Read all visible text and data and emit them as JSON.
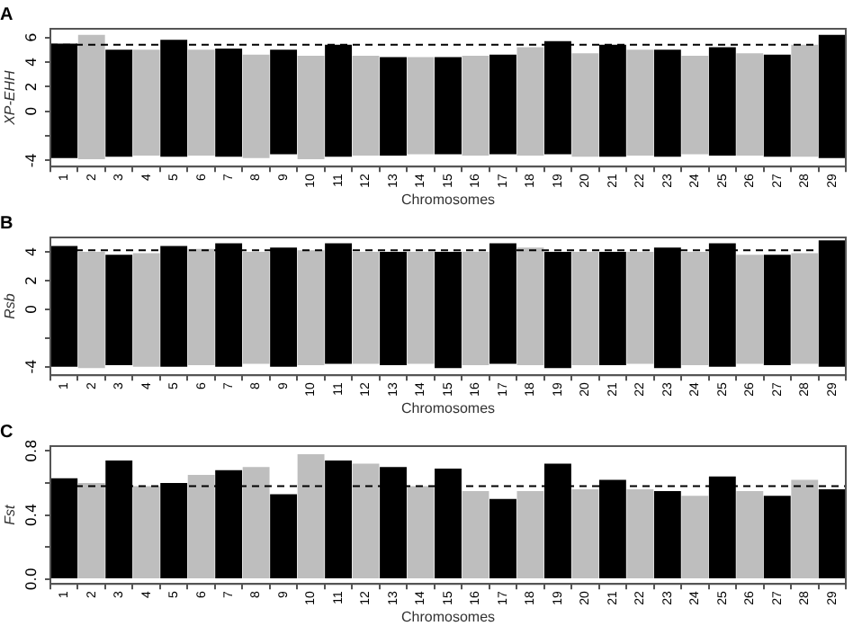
{
  "chart_data": [
    {
      "type": "bar",
      "title": "A",
      "xlabel": "Chromosomes",
      "ylabel": "XP-EHH",
      "categories": [
        "1",
        "2",
        "3",
        "4",
        "5",
        "6",
        "7",
        "8",
        "9",
        "10",
        "11",
        "12",
        "13",
        "14",
        "15",
        "16",
        "17",
        "18",
        "19",
        "20",
        "21",
        "22",
        "23",
        "24",
        "25",
        "26",
        "27",
        "28",
        "29"
      ],
      "base": [
        -3.8,
        -3.9,
        -3.7,
        -3.6,
        -3.7,
        -3.6,
        -3.7,
        -3.8,
        -3.5,
        -3.9,
        -3.7,
        -3.6,
        -3.6,
        -3.5,
        -3.5,
        -3.6,
        -3.5,
        -3.6,
        -3.5,
        -3.7,
        -3.7,
        -3.6,
        -3.7,
        -3.5,
        -3.6,
        -3.6,
        -3.7,
        -3.7,
        -3.8
      ],
      "values": [
        9.3,
        10.1,
        8.7,
        8.6,
        9.5,
        8.6,
        8.8,
        8.4,
        8.5,
        8.4,
        9.1,
        8.1,
        8.0,
        7.9,
        7.9,
        8.1,
        8.1,
        8.8,
        9.2,
        8.4,
        9.1,
        8.6,
        8.7,
        8.0,
        8.8,
        8.3,
        8.3,
        9.1,
        10.0
      ],
      "colors": [
        "#000000",
        "#bebebe",
        "#000000",
        "#bebebe",
        "#000000",
        "#bebebe",
        "#000000",
        "#bebebe",
        "#000000",
        "#bebebe",
        "#000000",
        "#bebebe",
        "#000000",
        "#bebebe",
        "#000000",
        "#bebebe",
        "#000000",
        "#bebebe",
        "#000000",
        "#bebebe",
        "#000000",
        "#bebebe",
        "#000000",
        "#bebebe",
        "#000000",
        "#bebebe",
        "#000000",
        "#bebebe",
        "#000000"
      ],
      "ylim": [
        -4.5,
        6.7
      ],
      "yticks": [
        -4,
        {
          "value": -2,
          "label": null
        },
        0,
        2,
        4,
        6
      ],
      "ref_lines": [
        {
          "axis": "y",
          "value": 5.4,
          "line_style": "dashed",
          "color": "#000000"
        }
      ],
      "grid": false,
      "legend": false
    },
    {
      "type": "bar",
      "title": "B",
      "xlabel": "Chromosomes",
      "ylabel": "Rsb",
      "categories": [
        "1",
        "2",
        "3",
        "4",
        "5",
        "6",
        "7",
        "8",
        "9",
        "10",
        "11",
        "12",
        "13",
        "14",
        "15",
        "16",
        "17",
        "18",
        "19",
        "20",
        "21",
        "22",
        "23",
        "24",
        "25",
        "26",
        "27",
        "28",
        "29"
      ],
      "base": [
        -4.0,
        -4.1,
        -3.9,
        -4.0,
        -4.0,
        -3.9,
        -4.0,
        -3.8,
        -4.0,
        -3.9,
        -3.8,
        -3.8,
        -3.9,
        -3.8,
        -4.1,
        -3.9,
        -3.8,
        -3.9,
        -4.1,
        -3.9,
        -3.9,
        -3.8,
        -4.1,
        -3.9,
        -4.0,
        -3.8,
        -3.9,
        -3.8,
        -4.0
      ],
      "values": [
        8.4,
        8.1,
        7.7,
        7.9,
        8.4,
        8.1,
        8.6,
        7.8,
        8.3,
        8.0,
        8.4,
        7.8,
        7.9,
        7.8,
        8.1,
        7.9,
        8.4,
        8.2,
        8.1,
        7.9,
        7.9,
        7.8,
        8.4,
        7.9,
        8.6,
        7.6,
        7.7,
        7.7,
        8.8
      ],
      "colors": [
        "#000000",
        "#bebebe",
        "#000000",
        "#bebebe",
        "#000000",
        "#bebebe",
        "#000000",
        "#bebebe",
        "#000000",
        "#bebebe",
        "#000000",
        "#bebebe",
        "#000000",
        "#bebebe",
        "#000000",
        "#bebebe",
        "#000000",
        "#bebebe",
        "#000000",
        "#bebebe",
        "#000000",
        "#bebebe",
        "#000000",
        "#bebebe",
        "#000000",
        "#bebebe",
        "#000000",
        "#bebebe",
        "#000000"
      ],
      "ylim": [
        -4.6,
        5.0
      ],
      "yticks": [
        -4,
        {
          "value": -2,
          "label": null
        },
        0,
        2,
        4
      ],
      "ref_lines": [
        {
          "axis": "y",
          "value": 4.1,
          "line_style": "dashed",
          "color": "#000000"
        }
      ],
      "grid": false,
      "legend": false
    },
    {
      "type": "bar",
      "title": "C",
      "xlabel": "Chromosomes",
      "ylabel": "Fst",
      "categories": [
        "1",
        "2",
        "3",
        "4",
        "5",
        "6",
        "7",
        "8",
        "9",
        "10",
        "11",
        "12",
        "13",
        "14",
        "15",
        "16",
        "17",
        "18",
        "19",
        "20",
        "21",
        "22",
        "23",
        "24",
        "25",
        "26",
        "27",
        "28",
        "29"
      ],
      "values": [
        0.63,
        0.6,
        0.74,
        0.58,
        0.6,
        0.65,
        0.68,
        0.7,
        0.53,
        0.78,
        0.74,
        0.72,
        0.7,
        0.58,
        0.69,
        0.55,
        0.5,
        0.55,
        0.72,
        0.56,
        0.62,
        0.56,
        0.55,
        0.52,
        0.64,
        0.55,
        0.52,
        0.62,
        0.56
      ],
      "colors": [
        "#000000",
        "#bebebe",
        "#000000",
        "#bebebe",
        "#000000",
        "#bebebe",
        "#000000",
        "#bebebe",
        "#000000",
        "#bebebe",
        "#000000",
        "#bebebe",
        "#000000",
        "#bebebe",
        "#000000",
        "#bebebe",
        "#000000",
        "#bebebe",
        "#000000",
        "#bebebe",
        "#000000",
        "#bebebe",
        "#000000",
        "#bebebe",
        "#000000",
        "#bebebe",
        "#000000",
        "#bebebe",
        "#000000"
      ],
      "ylim": [
        -0.03,
        0.83
      ],
      "yticks": [
        {
          "value": 0,
          "label": "0.0"
        },
        {
          "value": 0.2,
          "label": null
        },
        0.4,
        {
          "value": 0.6,
          "label": null
        },
        0.8
      ],
      "ref_lines": [
        {
          "axis": "y",
          "value": 0.58,
          "line_style": "dashed",
          "color": "#000000"
        }
      ],
      "grid": false,
      "legend": false
    }
  ]
}
